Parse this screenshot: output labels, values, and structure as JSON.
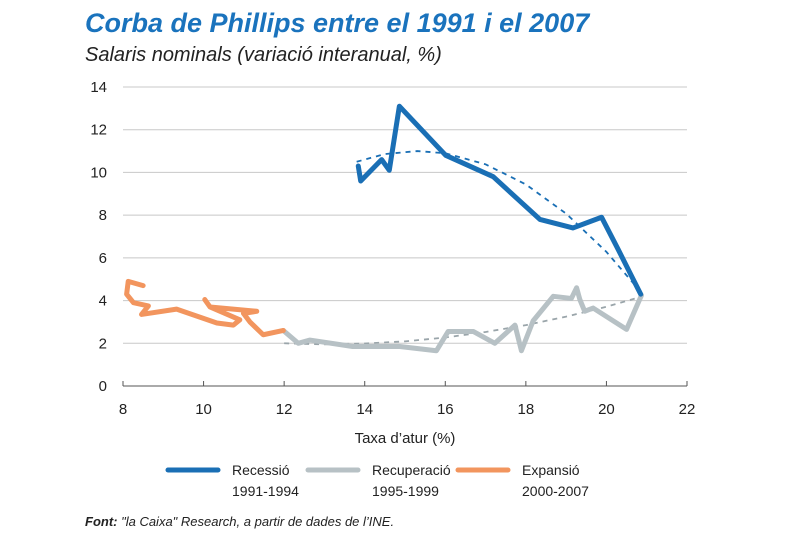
{
  "chart_data": {
    "type": "line",
    "title": "Corba de Phillips entre el 1991 i el 2007",
    "subtitle": "Salaris nominals (variació interanual, %)",
    "xlabel": "Taxa d’atur (%)",
    "ylabel": "",
    "xlim": [
      8,
      22
    ],
    "ylim": [
      0,
      14
    ],
    "xticks": [
      "8",
      "10",
      "12",
      "14",
      "16",
      "18",
      "20",
      "22"
    ],
    "yticks": [
      "0",
      "2",
      "4",
      "6",
      "8",
      "10",
      "12",
      "14"
    ],
    "grid": "horizontal",
    "legend_placement": "bottom",
    "series": [
      {
        "name": "Recessió",
        "name2": "1991-1994",
        "color": "#1a6fb5",
        "x": [
          13.84,
          13.9,
          14.42,
          14.61,
          14.86,
          15.41,
          16.01,
          17.19,
          18.35,
          19.17,
          19.88,
          20.29,
          20.85
        ],
        "y": [
          10.3,
          9.6,
          10.6,
          10.1,
          13.1,
          12.0,
          10.8,
          9.8,
          7.8,
          7.4,
          7.9,
          6.4,
          4.3
        ],
        "trend": {
          "style": "dashed",
          "x": [
            13.8,
            14.5,
            15.3,
            16,
            17,
            18,
            19,
            20,
            20.9
          ],
          "y": [
            10.5,
            10.86,
            11.0,
            10.9,
            10.38,
            9.44,
            8.07,
            6.28,
            4.3
          ]
        }
      },
      {
        "name": "Recuperació",
        "name2": "1995-1999",
        "color": "#b7c1c5",
        "x": [
          11.98,
          12.35,
          12.64,
          13.7,
          14.87,
          15.78,
          16.07,
          16.7,
          17.23,
          17.73,
          17.89,
          18.18,
          18.68,
          19.13,
          19.26,
          19.34,
          19.46,
          19.67,
          20.5,
          20.87
        ],
        "y": [
          2.6,
          2.0,
          2.15,
          1.85,
          1.85,
          1.65,
          2.55,
          2.55,
          2.0,
          2.85,
          1.65,
          3.05,
          4.2,
          4.1,
          4.6,
          4.05,
          3.5,
          3.65,
          2.65,
          4.25
        ],
        "trend": {
          "style": "dashed",
          "x": [
            12,
            13,
            14,
            15,
            16,
            17,
            18,
            19,
            20,
            20.9
          ],
          "y": [
            2.0,
            1.95,
            1.99,
            2.09,
            2.27,
            2.53,
            2.85,
            3.25,
            3.71,
            4.2
          ]
        }
      },
      {
        "name": "Expansió",
        "name2": "2000-2007",
        "color": "#f2955e",
        "x": [
          8.5,
          8.13,
          8.09,
          8.26,
          8.63,
          8.46,
          9.33,
          9.87,
          10.33,
          10.74,
          10.9,
          10.16,
          10.03,
          10.16,
          11.32,
          10.99,
          11.15,
          11.48,
          11.98
        ],
        "y": [
          4.7,
          4.9,
          4.3,
          3.9,
          3.75,
          3.35,
          3.6,
          3.25,
          2.95,
          2.85,
          3.1,
          3.7,
          4.05,
          3.7,
          3.5,
          3.4,
          3.0,
          2.4,
          2.6
        ]
      }
    ],
    "source_label": "Font:",
    "source_text": " \"la Caixa\" Research, a partir de dades de l’INE."
  }
}
